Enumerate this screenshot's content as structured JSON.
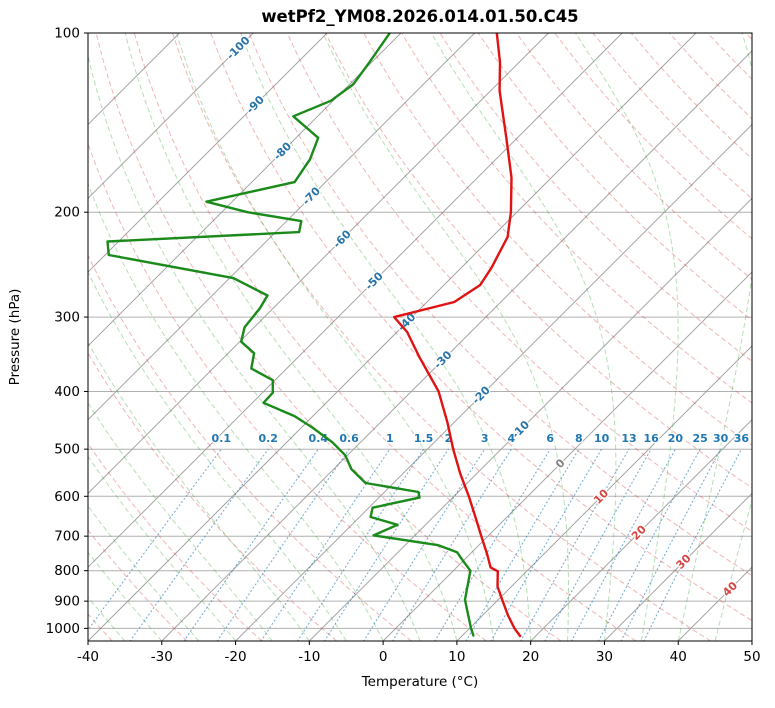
{
  "chart_data": {
    "type": "skewt_log_p",
    "title": "wetPf2_YM08.2026.014.01.50.C45",
    "xlabel": "Temperature (°C)",
    "ylabel": "Pressure (hPa)",
    "xlim": [
      -40,
      50
    ],
    "plim": [
      100,
      1050
    ],
    "x_ticks": [
      -40,
      -30,
      -20,
      -10,
      0,
      10,
      20,
      30,
      40,
      50
    ],
    "y_ticks": [
      100,
      200,
      300,
      400,
      500,
      600,
      700,
      800,
      900,
      1000
    ],
    "grid": true,
    "skew": "45deg",
    "isotherm_range": [
      -110,
      60
    ],
    "isotherm_step": 10,
    "isotherm_labels": [
      {
        "t": -100,
        "p": 106
      },
      {
        "t": -90,
        "p": 132
      },
      {
        "t": -80,
        "p": 158
      },
      {
        "t": -70,
        "p": 188
      },
      {
        "t": -60,
        "p": 222
      },
      {
        "t": -50,
        "p": 261
      },
      {
        "t": -40,
        "p": 306
      },
      {
        "t": -30,
        "p": 354
      },
      {
        "t": -20,
        "p": 406
      },
      {
        "t": -10,
        "p": 464
      },
      {
        "t": 0,
        "p": 529
      },
      {
        "t": 10,
        "p": 601
      },
      {
        "t": 20,
        "p": 691
      },
      {
        "t": 30,
        "p": 773
      },
      {
        "t": 40,
        "p": 859
      }
    ],
    "dry_adiabats": {
      "theta_start": -40,
      "theta_end": 200,
      "step": 10
    },
    "moist_adiabats": {
      "t_start": -40,
      "t_end": 45,
      "step": 5
    },
    "mixing_ratios_g_kg": [
      0.1,
      0.2,
      0.4,
      0.6,
      1,
      1.5,
      2,
      3,
      4,
      6,
      8,
      10,
      13,
      16,
      20,
      25,
      30,
      36
    ],
    "mixing_label_pressure_hpa": 500,
    "series": [
      {
        "name": "temperature",
        "color_key": "temperature_line",
        "points_p_t": [
          [
            100,
            -67.0
          ],
          [
            112,
            -62.6
          ],
          [
            125,
            -58.8
          ],
          [
            150,
            -51.5
          ],
          [
            175,
            -45.4
          ],
          [
            200,
            -40.8
          ],
          [
            220,
            -37.9
          ],
          [
            248,
            -35.9
          ],
          [
            265,
            -35.1
          ],
          [
            283,
            -36.3
          ],
          [
            300,
            -42.4
          ],
          [
            318,
            -38.6
          ],
          [
            350,
            -33.6
          ],
          [
            400,
            -26.3
          ],
          [
            450,
            -21.0
          ],
          [
            500,
            -16.5
          ],
          [
            550,
            -12.2
          ],
          [
            600,
            -8.0
          ],
          [
            650,
            -4.3
          ],
          [
            700,
            -0.9
          ],
          [
            750,
            2.3
          ],
          [
            790,
            4.6
          ],
          [
            802,
            6.1
          ],
          [
            850,
            8.1
          ],
          [
            900,
            10.8
          ],
          [
            950,
            13.4
          ],
          [
            1000,
            16.1
          ],
          [
            1030,
            17.9
          ]
        ]
      },
      {
        "name": "dewpoint",
        "color_key": "dewpoint_line",
        "points_p_t": [
          [
            100,
            -81.5
          ],
          [
            112,
            -80.3
          ],
          [
            122,
            -79.5
          ],
          [
            130,
            -80.3
          ],
          [
            138,
            -83.3
          ],
          [
            150,
            -77.0
          ],
          [
            163,
            -75.2
          ],
          [
            178,
            -74.2
          ],
          [
            192,
            -83.5
          ],
          [
            200,
            -76.5
          ],
          [
            207,
            -68.0
          ],
          [
            216,
            -66.8
          ],
          [
            224,
            -91.5
          ],
          [
            236,
            -89.5
          ],
          [
            258,
            -69.5
          ],
          [
            276,
            -62.5
          ],
          [
            290,
            -61.8
          ],
          [
            312,
            -61.3
          ],
          [
            330,
            -59.8
          ],
          [
            345,
            -56.5
          ],
          [
            366,
            -54.8
          ],
          [
            383,
            -50.3
          ],
          [
            402,
            -48.6
          ],
          [
            418,
            -48.5
          ],
          [
            440,
            -42.5
          ],
          [
            460,
            -38.5
          ],
          [
            487,
            -33.8
          ],
          [
            512,
            -30.3
          ],
          [
            540,
            -27.6
          ],
          [
            570,
            -23.8
          ],
          [
            590,
            -15.4
          ],
          [
            603,
            -14.5
          ],
          [
            627,
            -19.5
          ],
          [
            650,
            -18.5
          ],
          [
            670,
            -13.8
          ],
          [
            698,
            -15.6
          ],
          [
            725,
            -5.5
          ],
          [
            745,
            -2.0
          ],
          [
            768,
            -0.2
          ],
          [
            800,
            2.3
          ],
          [
            843,
            3.8
          ],
          [
            895,
            5.5
          ],
          [
            945,
            7.8
          ],
          [
            1000,
            10.2
          ],
          [
            1028,
            11.5
          ]
        ]
      }
    ],
    "colors": {
      "temperature_line": "#e01212",
      "dewpoint_line": "#1a8a1a",
      "isotherm": "#a3a3a3",
      "grid": "#b0b0b0",
      "dry_adiabat": "#d62728",
      "moist_adiabat": "#2ca02c",
      "mixing_line": "#1f77b4",
      "mixing_label": "#1f77b4",
      "label_neg": "#2873a8",
      "label_zero": "#808080",
      "label_pos": "#d64541",
      "axis_text": "#000000",
      "spine": "#000000"
    }
  }
}
